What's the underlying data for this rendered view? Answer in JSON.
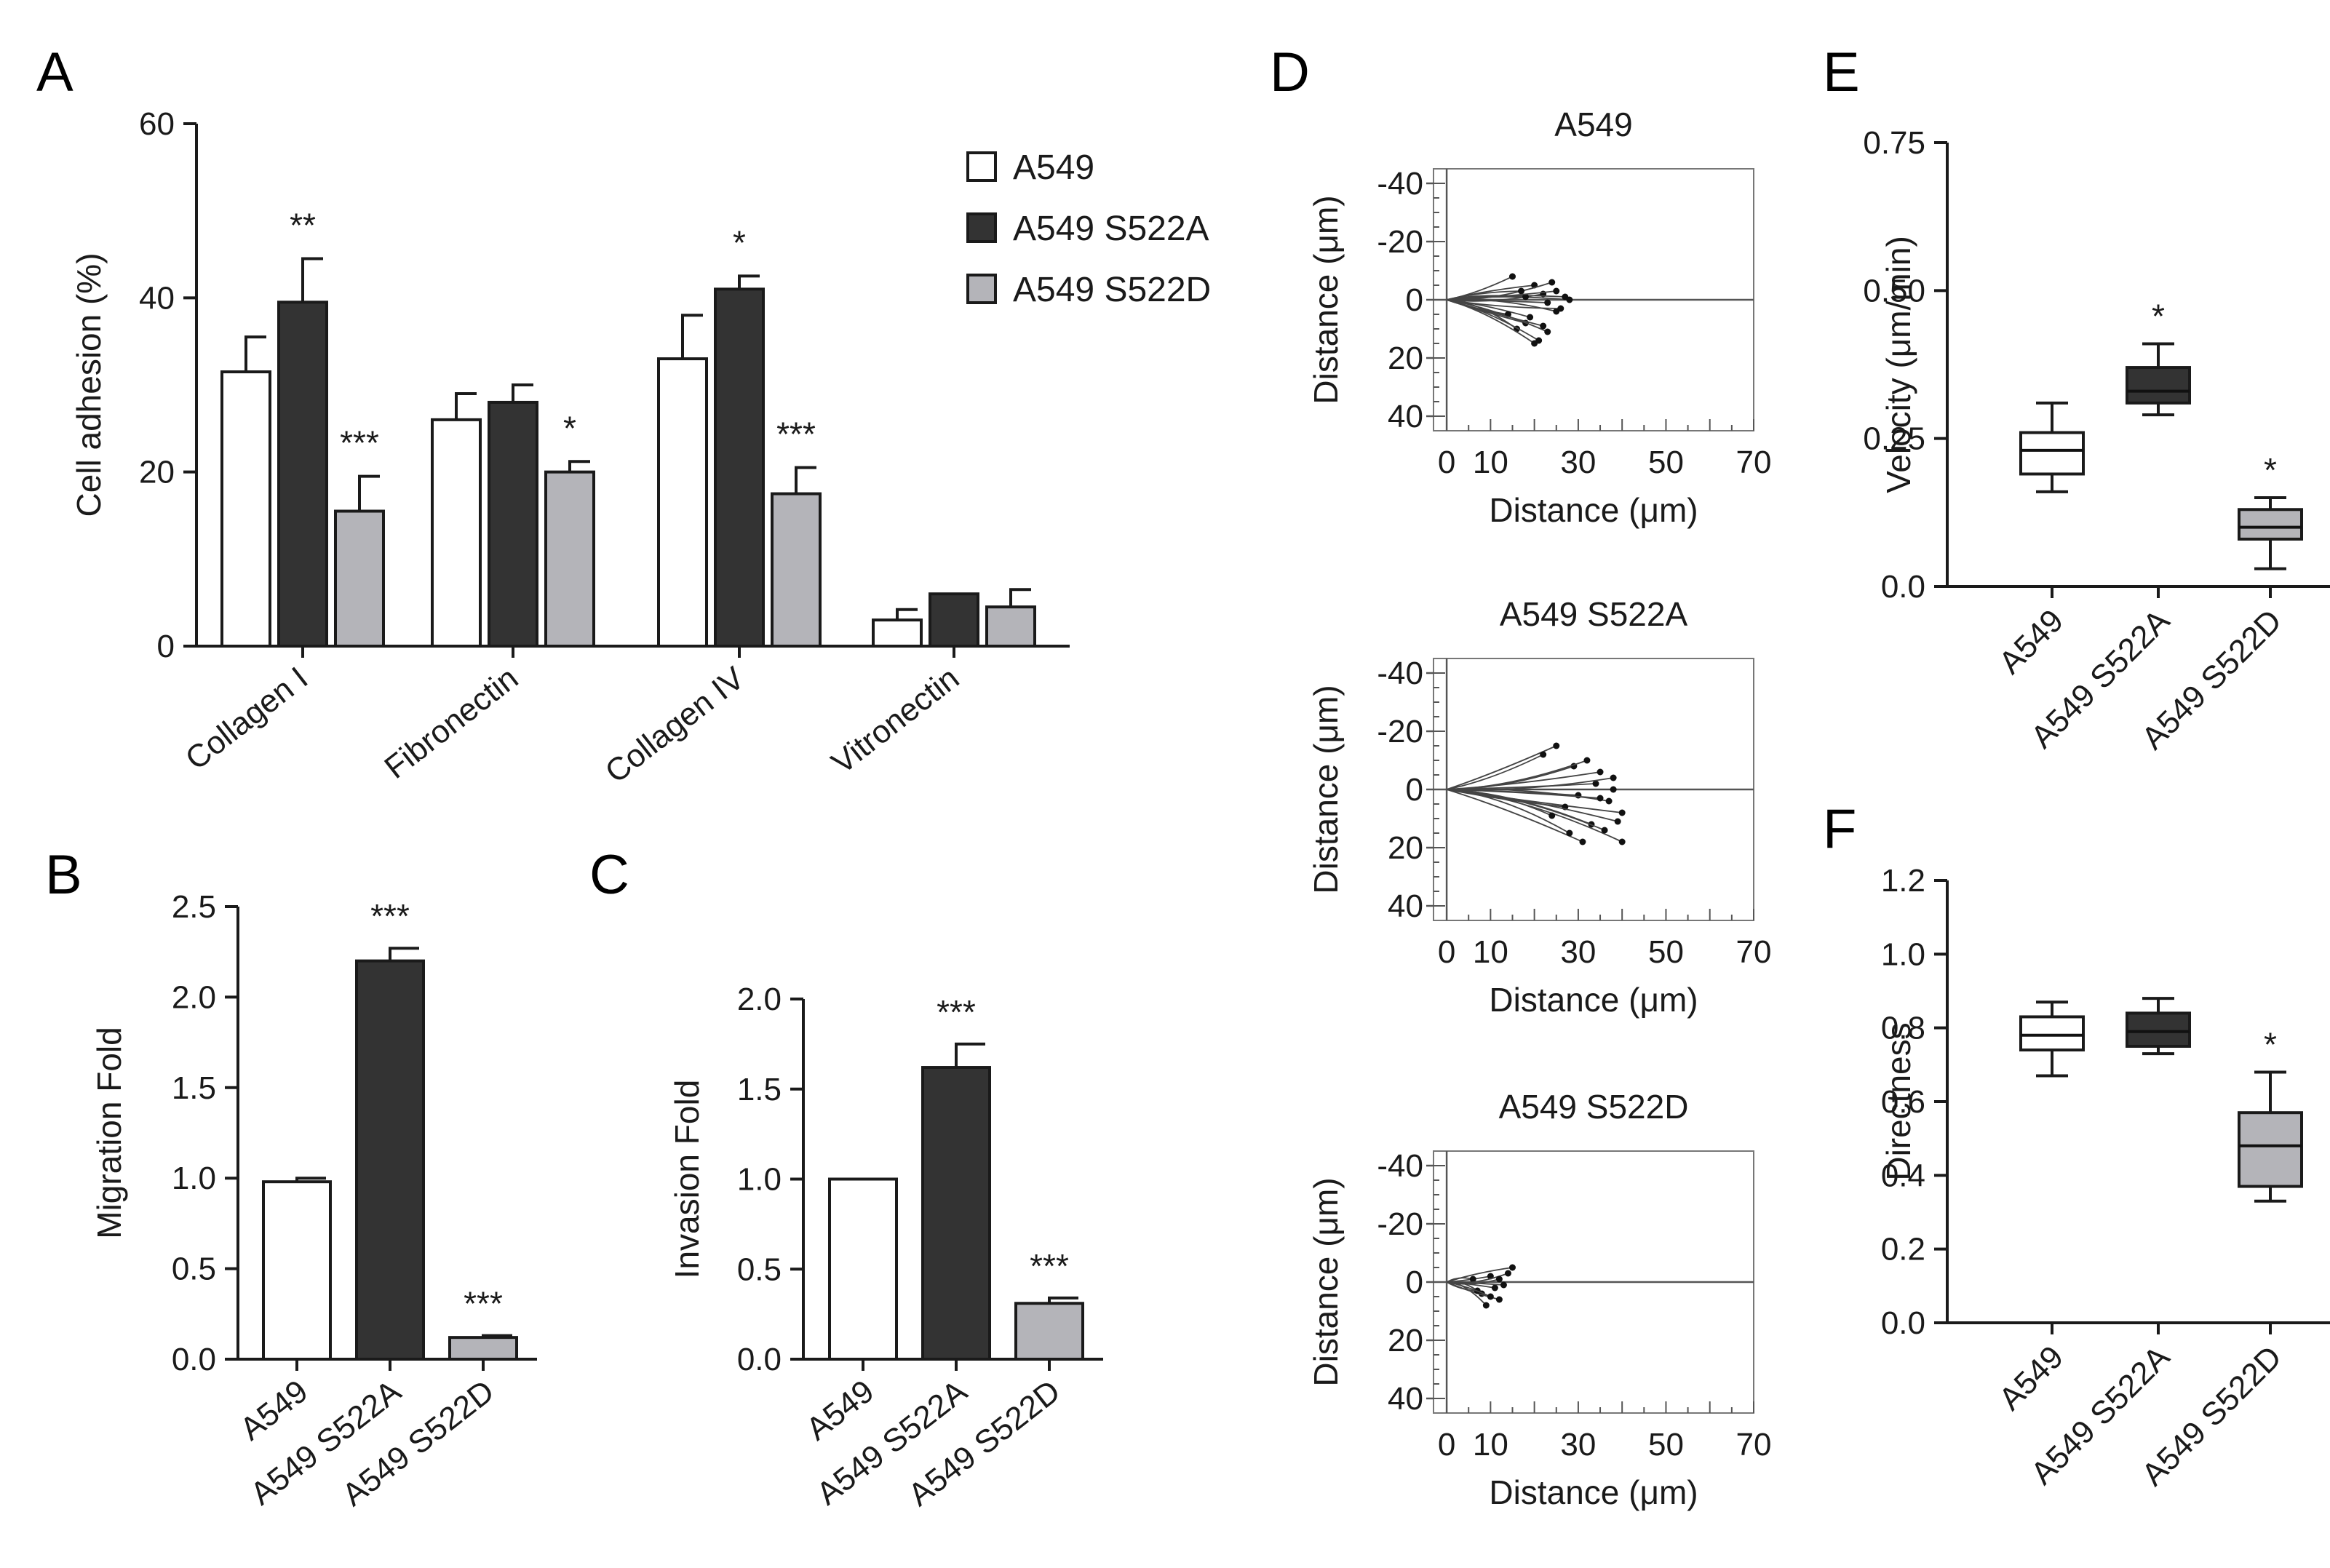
{
  "chart_data": [
    {
      "id": "A",
      "panel_label": "A",
      "type": "bar",
      "ylabel": "Cell adhesion (%)",
      "ylim": [
        0,
        60
      ],
      "yticks": [
        0,
        20,
        40,
        60
      ],
      "categories": [
        "Collagen I",
        "Fibronectin",
        "Collagen IV",
        "Vitronectin"
      ],
      "series": [
        {
          "name": "A549",
          "color": "#ffffff",
          "values": [
            31.5,
            26,
            33,
            3
          ],
          "errors": [
            4,
            3,
            5,
            1.2
          ],
          "sig": [
            "",
            "",
            "",
            ""
          ]
        },
        {
          "name": "A549 S522A",
          "color": "#333333",
          "values": [
            39.5,
            28,
            41,
            6
          ],
          "errors": [
            5,
            2,
            1.5,
            0
          ],
          "sig": [
            "**",
            "",
            "*",
            ""
          ]
        },
        {
          "name": "A549 S522D",
          "color": "#b4b4b9",
          "values": [
            15.5,
            20,
            17.5,
            4.5
          ],
          "errors": [
            4,
            1.2,
            3,
            2
          ],
          "sig": [
            "***",
            "*",
            "***",
            ""
          ]
        }
      ]
    },
    {
      "id": "B",
      "panel_label": "B",
      "type": "bar",
      "ylabel": "Migration Fold",
      "ylim": [
        0,
        2.5
      ],
      "yticks": [
        "0.0",
        "0.5",
        "1.0",
        "1.5",
        "2.0",
        "2.5"
      ],
      "categories": [
        "A549",
        "A549 S522A",
        "A549 S522D"
      ],
      "values": [
        0.98,
        2.2,
        0.12
      ],
      "errors": [
        0.02,
        0.07,
        0.01
      ],
      "colors": [
        "#ffffff",
        "#333333",
        "#b4b4b9"
      ],
      "sig": [
        "",
        "***",
        "***"
      ]
    },
    {
      "id": "C",
      "panel_label": "C",
      "type": "bar",
      "ylabel": "Invasion Fold",
      "ylim": [
        0,
        2.0
      ],
      "yticks": [
        "0.0",
        "0.5",
        "1.0",
        "1.5",
        "2.0"
      ],
      "categories": [
        "A549",
        "A549 S522A",
        "A549 S522D"
      ],
      "values": [
        1.0,
        1.62,
        0.31
      ],
      "errors": [
        0,
        0.13,
        0.03
      ],
      "colors": [
        "#ffffff",
        "#333333",
        "#b4b4b9"
      ],
      "sig": [
        "",
        "***",
        "***"
      ]
    },
    {
      "id": "D",
      "panel_label": "D",
      "type": "line",
      "xlabel": "Distance (μm)",
      "ylabel": "Distance (μm)",
      "xlim": [
        -3,
        70
      ],
      "ylim": [
        -45,
        45
      ],
      "xticks": [
        "0",
        "10",
        "30",
        "50",
        "70"
      ],
      "yticks": [
        "-40",
        "-20",
        "0",
        "20",
        "40"
      ],
      "plots": [
        {
          "title": "A549",
          "tracks": [
            [
              20,
              -5
            ],
            [
              23,
              1
            ],
            [
              18,
              8
            ],
            [
              25,
              4
            ],
            [
              15,
              -8
            ],
            [
              22,
              -2
            ],
            [
              28,
              0
            ],
            [
              19,
              6
            ],
            [
              24,
              -6
            ],
            [
              16,
              10
            ],
            [
              21,
              14
            ],
            [
              26,
              3
            ],
            [
              17,
              -3
            ],
            [
              23,
              11
            ],
            [
              14,
              5
            ],
            [
              27,
              -1
            ],
            [
              20,
              15
            ],
            [
              22,
              9
            ],
            [
              18,
              -1
            ],
            [
              25,
              -3
            ]
          ]
        },
        {
          "title": "A549 S522A",
          "tracks": [
            [
              25,
              -15
            ],
            [
              35,
              -6
            ],
            [
              40,
              8
            ],
            [
              33,
              12
            ],
            [
              38,
              0
            ],
            [
              29,
              -8
            ],
            [
              37,
              4
            ],
            [
              22,
              -12
            ],
            [
              31,
              18
            ],
            [
              40,
              18
            ],
            [
              34,
              -2
            ],
            [
              27,
              6
            ],
            [
              36,
              14
            ],
            [
              30,
              2
            ],
            [
              38,
              -4
            ],
            [
              24,
              9
            ],
            [
              39,
              11
            ],
            [
              32,
              -10
            ],
            [
              28,
              15
            ],
            [
              35,
              3
            ]
          ]
        },
        {
          "title": "A549 S522D",
          "tracks": [
            [
              8,
              4
            ],
            [
              10,
              -2
            ],
            [
              12,
              6
            ],
            [
              6,
              -1
            ],
            [
              11,
              2
            ],
            [
              14,
              -3
            ],
            [
              9,
              8
            ],
            [
              13,
              1
            ],
            [
              7,
              3
            ],
            [
              15,
              -5
            ],
            [
              10,
              5
            ],
            [
              12,
              -1
            ]
          ]
        }
      ]
    },
    {
      "id": "E",
      "panel_label": "E",
      "type": "box",
      "ylabel": "Velocity (μm/min)",
      "ylim": [
        0,
        0.75
      ],
      "yticks": [
        "0.0",
        "0.25",
        "0.50",
        "0.75"
      ],
      "categories": [
        "A549",
        "A549 S522A",
        "A549 S522D"
      ],
      "boxes": [
        {
          "min": 0.16,
          "q1": 0.19,
          "median": 0.23,
          "q3": 0.26,
          "max": 0.31,
          "color": "#ffffff",
          "sig": ""
        },
        {
          "min": 0.29,
          "q1": 0.31,
          "median": 0.33,
          "q3": 0.37,
          "max": 0.41,
          "color": "#333333",
          "sig": "*"
        },
        {
          "min": 0.03,
          "q1": 0.08,
          "median": 0.1,
          "q3": 0.13,
          "max": 0.15,
          "color": "#b4b4b9",
          "sig": "*"
        }
      ]
    },
    {
      "id": "F",
      "panel_label": "F",
      "type": "box",
      "ylabel": "Directness",
      "ylim": [
        0,
        1.2
      ],
      "yticks": [
        "0.0",
        "0.2",
        "0.4",
        "0.6",
        "0.8",
        "1.0",
        "1.2"
      ],
      "categories": [
        "A549",
        "A549 S522A",
        "A549 S522D"
      ],
      "boxes": [
        {
          "min": 0.67,
          "q1": 0.74,
          "median": 0.78,
          "q3": 0.83,
          "max": 0.87,
          "color": "#ffffff",
          "sig": ""
        },
        {
          "min": 0.73,
          "q1": 0.75,
          "median": 0.79,
          "q3": 0.84,
          "max": 0.88,
          "color": "#333333",
          "sig": ""
        },
        {
          "min": 0.33,
          "q1": 0.37,
          "median": 0.48,
          "q3": 0.57,
          "max": 0.68,
          "color": "#b4b4b9",
          "sig": "*"
        }
      ]
    }
  ]
}
